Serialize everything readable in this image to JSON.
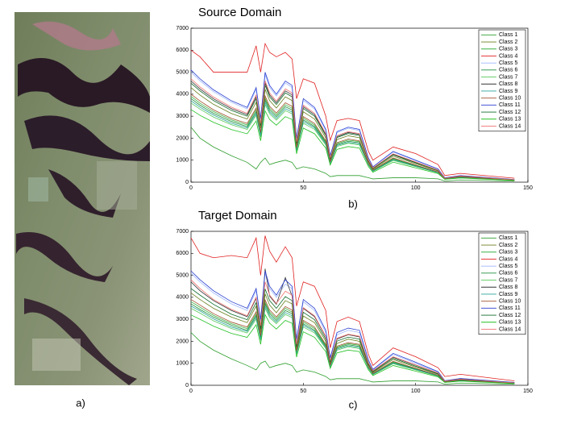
{
  "image_panel": {
    "label": "a)"
  },
  "chart_data": [
    {
      "type": "line",
      "title": "Source Domain",
      "label": "b)",
      "x": [
        0,
        4,
        10,
        18,
        25,
        29,
        31,
        33,
        35,
        38,
        42,
        45,
        47,
        50,
        55,
        60,
        62,
        65,
        70,
        75,
        79,
        81,
        90,
        100,
        110,
        113,
        120,
        144
      ],
      "xlim": [
        0,
        150
      ],
      "xticks": [
        0,
        50,
        100,
        150
      ],
      "ylim": [
        0,
        7000
      ],
      "yticks": [
        0,
        1000,
        2000,
        3000,
        4000,
        5000,
        6000,
        7000
      ],
      "legend": "upper right",
      "series": [
        {
          "name": "Class 1",
          "color": "#2e9e2e",
          "values": [
            2500,
            2000,
            1600,
            1200,
            900,
            600,
            900,
            1100,
            800,
            900,
            1000,
            900,
            600,
            700,
            600,
            400,
            250,
            300,
            300,
            300,
            200,
            150,
            200,
            200,
            150,
            50,
            100,
            50
          ]
        },
        {
          "name": "Class 2",
          "color": "#6b7f1e",
          "values": [
            4300,
            3960,
            3540,
            3120,
            2870,
            3630,
            2450,
            4220,
            3710,
            3370,
            3880,
            3710,
            1690,
            3200,
            2870,
            2020,
            1010,
            1940,
            2110,
            2020,
            930,
            590,
            1180,
            840,
            510,
            170,
            250,
            100
          ]
        },
        {
          "name": "Class 3",
          "color": "#3cb043",
          "values": [
            3900,
            3590,
            3210,
            2830,
            2600,
            3290,
            2220,
            3820,
            3360,
            3060,
            3520,
            3360,
            1530,
            2910,
            2600,
            1840,
            920,
            1760,
            1910,
            1840,
            840,
            540,
            1070,
            770,
            460,
            150,
            230,
            90
          ]
        },
        {
          "name": "Class 4",
          "color": "#e02020",
          "values": [
            6000,
            5700,
            5000,
            5000,
            5000,
            6200,
            5000,
            6300,
            5900,
            5700,
            5900,
            5600,
            3800,
            4700,
            4500,
            3000,
            1900,
            2800,
            2900,
            2800,
            1400,
            1000,
            1600,
            1300,
            800,
            300,
            400,
            180
          ]
        },
        {
          "name": "Class 5",
          "color": "#9db6ff",
          "values": [
            5000,
            4610,
            4120,
            3630,
            3330,
            4210,
            2840,
            4900,
            4310,
            3920,
            4510,
            4310,
            1960,
            3720,
            3330,
            2350,
            1180,
            2250,
            2450,
            2350,
            1080,
            690,
            1370,
            980,
            590,
            200,
            290,
            120
          ]
        },
        {
          "name": "Class 6",
          "color": "#1f8f3a",
          "values": [
            3800,
            3500,
            3130,
            2760,
            2530,
            3200,
            2160,
            3730,
            3280,
            2980,
            3430,
            3280,
            1490,
            2830,
            2530,
            1790,
            890,
            1710,
            1860,
            1790,
            820,
            520,
            1040,
            750,
            450,
            150,
            220,
            90
          ]
        },
        {
          "name": "Class 7",
          "color": "#56c85a",
          "values": [
            3600,
            3320,
            2960,
            2610,
            2400,
            3040,
            2050,
            3530,
            3110,
            2820,
            3250,
            3110,
            1410,
            2680,
            2400,
            1690,
            850,
            1620,
            1770,
            1690,
            780,
            490,
            990,
            710,
            420,
            140,
            210,
            80
          ]
        },
        {
          "name": "Class 8",
          "color": "#333333",
          "values": [
            4600,
            4240,
            3790,
            3340,
            3070,
            3880,
            2620,
            4510,
            3970,
            3610,
            4150,
            3970,
            1800,
            3430,
            3070,
            2170,
            1080,
            2070,
            2260,
            2170,
            990,
            630,
            1260,
            900,
            540,
            180,
            270,
            110
          ]
        },
        {
          "name": "Class 9",
          "color": "#2aa39a",
          "values": [
            3700,
            3410,
            3050,
            2680,
            2470,
            3120,
            2100,
            3630,
            3190,
            2900,
            3340,
            3190,
            1450,
            2760,
            2470,
            1740,
            870,
            1670,
            1810,
            1740,
            800,
            510,
            1020,
            730,
            440,
            150,
            220,
            90
          ]
        },
        {
          "name": "Class 10",
          "color": "#a0522d",
          "values": [
            4000,
            3690,
            3290,
            2900,
            2670,
            3370,
            2270,
            3920,
            3450,
            3140,
            3610,
            3450,
            1570,
            2980,
            2670,
            1880,
            940,
            1800,
            1960,
            1880,
            860,
            550,
            1100,
            780,
            470,
            160,
            240,
            90
          ]
        },
        {
          "name": "Class 11",
          "color": "#2a3fd0",
          "values": [
            5100,
            4700,
            4200,
            3700,
            3400,
            4300,
            2900,
            5000,
            4400,
            4000,
            4600,
            4400,
            2000,
            3800,
            3400,
            2400,
            1200,
            2300,
            2500,
            2400,
            1100,
            700,
            1400,
            1000,
            600,
            200,
            300,
            120
          ]
        },
        {
          "name": "Class 12",
          "color": "#0f6b2a",
          "values": [
            4500,
            4150,
            3710,
            3260,
            3000,
            3790,
            2560,
            4410,
            3880,
            3530,
            4060,
            3880,
            1760,
            3350,
            3000,
            2120,
            1060,
            2030,
            2210,
            2120,
            970,
            620,
            1240,
            880,
            530,
            180,
            260,
            110
          ]
        },
        {
          "name": "Class 13",
          "color": "#22c022",
          "values": [
            3300,
            3040,
            2720,
            2390,
            2200,
            2780,
            1880,
            3240,
            2850,
            2590,
            2980,
            2850,
            1290,
            2460,
            2200,
            1550,
            780,
            1490,
            1620,
            1550,
            710,
            450,
            910,
            650,
            390,
            130,
            190,
            80
          ]
        },
        {
          "name": "Class 14",
          "color": "#f07070",
          "values": [
            4700,
            4330,
            3870,
            3410,
            3130,
            3960,
            2670,
            4610,
            4060,
            3690,
            4240,
            4060,
            1840,
            3500,
            3130,
            2210,
            1110,
            2120,
            2300,
            2210,
            1010,
            650,
            1290,
            920,
            550,
            180,
            280,
            110
          ]
        }
      ]
    },
    {
      "type": "line",
      "title": "Target Domain",
      "label": "c)",
      "x": [
        0,
        4,
        10,
        18,
        25,
        29,
        31,
        33,
        35,
        38,
        42,
        45,
        47,
        50,
        55,
        60,
        62,
        65,
        70,
        75,
        79,
        81,
        90,
        100,
        110,
        113,
        120,
        144
      ],
      "xlim": [
        0,
        150
      ],
      "xticks": [
        0,
        50,
        100,
        150
      ],
      "ylim": [
        0,
        7000
      ],
      "yticks": [
        0,
        1000,
        2000,
        3000,
        4000,
        5000,
        6000,
        7000
      ],
      "legend": "upper right",
      "series": [
        {
          "name": "Class 1",
          "color": "#2e9e2e",
          "values": [
            2400,
            2000,
            1600,
            1200,
            900,
            700,
            1000,
            1100,
            800,
            900,
            1000,
            900,
            600,
            700,
            600,
            400,
            250,
            300,
            300,
            300,
            200,
            150,
            200,
            200,
            150,
            50,
            100,
            50
          ]
        },
        {
          "name": "Class 2",
          "color": "#6b7f1e",
          "values": [
            4200,
            3900,
            3500,
            3100,
            2850,
            3600,
            2400,
            4150,
            3650,
            3300,
            3850,
            3700,
            1650,
            3150,
            2850,
            2000,
            1000,
            1900,
            2100,
            2000,
            920,
            580,
            1170,
            830,
            500,
            170,
            250,
            100
          ]
        },
        {
          "name": "Class 3",
          "color": "#3cb043",
          "values": [
            3800,
            3550,
            3180,
            2800,
            2580,
            3250,
            2200,
            3780,
            3330,
            3030,
            3500,
            3330,
            1510,
            2880,
            2580,
            1820,
            910,
            1740,
            1890,
            1820,
            830,
            530,
            1060,
            760,
            450,
            150,
            230,
            90
          ]
        },
        {
          "name": "Class 4",
          "color": "#e02020",
          "values": [
            6700,
            6000,
            5800,
            5900,
            5800,
            6700,
            5000,
            6800,
            6100,
            5600,
            6300,
            5800,
            3600,
            4700,
            4500,
            3400,
            1700,
            2900,
            3100,
            2900,
            1400,
            900,
            1700,
            1300,
            800,
            400,
            500,
            200
          ]
        },
        {
          "name": "Class 5",
          "color": "#9db6ff",
          "values": [
            5100,
            4700,
            4200,
            3700,
            3400,
            4300,
            2900,
            5100,
            4400,
            4000,
            4600,
            4400,
            2000,
            3800,
            3400,
            2400,
            1200,
            2300,
            2500,
            2400,
            1100,
            700,
            1400,
            1000,
            600,
            200,
            300,
            120
          ]
        },
        {
          "name": "Class 6",
          "color": "#1f8f3a",
          "values": [
            3700,
            3450,
            3100,
            2730,
            2500,
            3170,
            2140,
            3700,
            3250,
            2950,
            3400,
            3250,
            1480,
            2800,
            2500,
            1770,
            880,
            1700,
            1840,
            1770,
            810,
            510,
            1030,
            740,
            440,
            150,
            220,
            90
          ]
        },
        {
          "name": "Class 7",
          "color": "#56c85a",
          "values": [
            3500,
            3280,
            2930,
            2580,
            2380,
            3010,
            2030,
            3500,
            3080,
            2800,
            3220,
            3080,
            1400,
            2650,
            2380,
            1670,
            840,
            1600,
            1750,
            1670,
            770,
            480,
            980,
            700,
            410,
            140,
            210,
            80
          ]
        },
        {
          "name": "Class 8",
          "color": "#333333",
          "values": [
            4700,
            4300,
            3850,
            3400,
            3120,
            3950,
            2660,
            5300,
            4050,
            3680,
            4900,
            4050,
            1830,
            3500,
            3120,
            2200,
            1100,
            2100,
            2300,
            2200,
            1000,
            640,
            1280,
            920,
            550,
            180,
            280,
            110
          ]
        },
        {
          "name": "Class 9",
          "color": "#2aa39a",
          "values": [
            3600,
            3380,
            3020,
            2650,
            2450,
            3090,
            2080,
            3600,
            3160,
            2870,
            3310,
            3160,
            1440,
            2730,
            2450,
            1720,
            860,
            1650,
            1790,
            1720,
            790,
            500,
            1010,
            720,
            430,
            150,
            220,
            90
          ]
        },
        {
          "name": "Class 10",
          "color": "#a0522d",
          "values": [
            3900,
            3650,
            3260,
            2870,
            2650,
            3340,
            2250,
            3880,
            3420,
            3110,
            3580,
            3420,
            1560,
            2950,
            2650,
            1860,
            930,
            1780,
            1940,
            1860,
            850,
            540,
            1090,
            770,
            460,
            160,
            240,
            90
          ]
        },
        {
          "name": "Class 11",
          "color": "#2a3fd0",
          "values": [
            5200,
            4800,
            4300,
            3800,
            3500,
            4400,
            3000,
            5200,
            4500,
            4100,
            4800,
            4500,
            2100,
            3900,
            3500,
            2500,
            1250,
            2400,
            2600,
            2500,
            1150,
            720,
            1450,
            1050,
            620,
            210,
            310,
            130
          ]
        },
        {
          "name": "Class 12",
          "color": "#0f6b2a",
          "values": [
            4400,
            4100,
            3680,
            3230,
            2980,
            3760,
            2540,
            4380,
            3850,
            3500,
            4030,
            3850,
            1750,
            3320,
            2980,
            2100,
            1050,
            2010,
            2190,
            2100,
            960,
            610,
            1230,
            870,
            520,
            180,
            260,
            110
          ]
        },
        {
          "name": "Class 13",
          "color": "#22c022",
          "values": [
            3200,
            3000,
            2690,
            2360,
            2180,
            2750,
            1860,
            3210,
            2820,
            2560,
            2950,
            2820,
            1280,
            2430,
            2180,
            1530,
            770,
            1470,
            1600,
            1530,
            700,
            440,
            900,
            640,
            380,
            130,
            190,
            80
          ]
        },
        {
          "name": "Class 14",
          "color": "#f07070",
          "values": [
            4800,
            4400,
            3900,
            3450,
            3160,
            4000,
            2700,
            4700,
            4100,
            3720,
            4280,
            4100,
            1860,
            3530,
            3160,
            2230,
            1120,
            2140,
            2320,
            2230,
            1020,
            660,
            1300,
            930,
            560,
            190,
            280,
            110
          ]
        }
      ]
    }
  ]
}
